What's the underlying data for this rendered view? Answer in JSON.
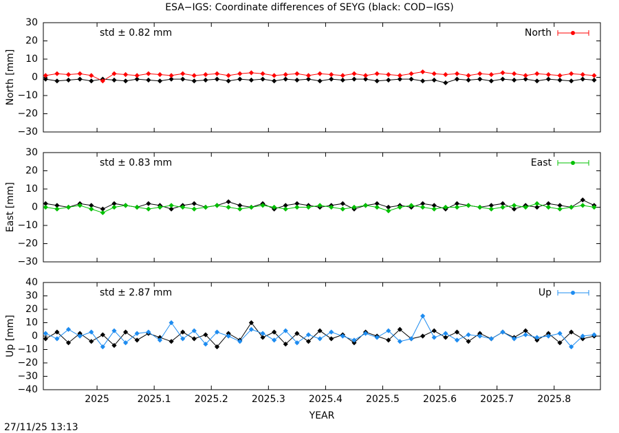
{
  "title": "ESA−IGS: Coordinate differences of SEYG (black: COD−IGS)",
  "footer": "27/11/25 13:13",
  "chart_data": [
    {
      "type": "line",
      "ylabel": "North [mm]",
      "annotation": "std ± 0.82 mm",
      "legend": "top-right",
      "xlim": [
        2024.906,
        2025.881
      ],
      "xticks": [
        2025,
        2025.1,
        2025.2,
        2025.3,
        2025.4,
        2025.5,
        2025.6,
        2025.7,
        2025.8
      ],
      "ylim": [
        -30,
        30
      ],
      "yticks": [
        {
          "value": -30,
          "label": "−30"
        },
        {
          "value": -20,
          "label": "−20"
        },
        {
          "value": -10,
          "label": "−10"
        },
        0,
        10,
        20,
        30
      ],
      "x": [
        2024.91,
        2024.93,
        2024.95,
        2024.97,
        2024.99,
        2025.01,
        2025.03,
        2025.05,
        2025.07,
        2025.09,
        2025.11,
        2025.13,
        2025.15,
        2025.17,
        2025.19,
        2025.21,
        2025.23,
        2025.25,
        2025.27,
        2025.29,
        2025.31,
        2025.33,
        2025.35,
        2025.37,
        2025.39,
        2025.41,
        2025.43,
        2025.45,
        2025.47,
        2025.49,
        2025.51,
        2025.53,
        2025.55,
        2025.57,
        2025.59,
        2025.61,
        2025.63,
        2025.65,
        2025.67,
        2025.69,
        2025.71,
        2025.73,
        2025.75,
        2025.77,
        2025.79,
        2025.81,
        2025.83,
        2025.85,
        2025.87
      ],
      "series": [
        {
          "color": "#000000",
          "values": [
            -1,
            -2,
            -1.5,
            -1,
            -2,
            -1,
            -1.5,
            -2,
            -1,
            -1.5,
            -2,
            -1,
            -1,
            -2,
            -1.5,
            -1,
            -2,
            -1,
            -1.5,
            -1,
            -2,
            -1,
            -1.5,
            -1,
            -2,
            -1,
            -1.5,
            -1,
            -1,
            -2,
            -1.5,
            -1,
            -1,
            -2,
            -1.5,
            -3,
            -1,
            -1.5,
            -1,
            -2,
            -1,
            -1.5,
            -1,
            -2,
            -1,
            -1.5,
            -2,
            -1,
            -1.5
          ]
        },
        {
          "name": "North",
          "color": "#ff0000",
          "values": [
            1,
            2,
            1.5,
            2,
            1,
            -2,
            2,
            1.5,
            1,
            2,
            1.5,
            1,
            2,
            1,
            1.5,
            2,
            1,
            2,
            2.5,
            2,
            1,
            1.5,
            2,
            1,
            2,
            1.5,
            1,
            2,
            1,
            2,
            1.5,
            1,
            2,
            3,
            2,
            1.5,
            2,
            1,
            2,
            1.5,
            2.5,
            2,
            1,
            2,
            1.5,
            1,
            2,
            1.5,
            1
          ]
        }
      ]
    },
    {
      "type": "line",
      "ylabel": "East [mm]",
      "annotation": "std ± 0.83 mm",
      "legend": "top-right",
      "xlim": [
        2024.906,
        2025.881
      ],
      "xticks": [
        2025,
        2025.1,
        2025.2,
        2025.3,
        2025.4,
        2025.5,
        2025.6,
        2025.7,
        2025.8
      ],
      "ylim": [
        -30,
        30
      ],
      "yticks": [
        {
          "value": -30,
          "label": "−30"
        },
        {
          "value": -20,
          "label": "−20"
        },
        {
          "value": -10,
          "label": "−10"
        },
        0,
        10,
        20,
        30
      ],
      "x": [
        2024.91,
        2024.93,
        2024.95,
        2024.97,
        2024.99,
        2025.01,
        2025.03,
        2025.05,
        2025.07,
        2025.09,
        2025.11,
        2025.13,
        2025.15,
        2025.17,
        2025.19,
        2025.21,
        2025.23,
        2025.25,
        2025.27,
        2025.29,
        2025.31,
        2025.33,
        2025.35,
        2025.37,
        2025.39,
        2025.41,
        2025.43,
        2025.45,
        2025.47,
        2025.49,
        2025.51,
        2025.53,
        2025.55,
        2025.57,
        2025.59,
        2025.61,
        2025.63,
        2025.65,
        2025.67,
        2025.69,
        2025.71,
        2025.73,
        2025.75,
        2025.77,
        2025.79,
        2025.81,
        2025.83,
        2025.85,
        2025.87
      ],
      "series": [
        {
          "color": "#000000",
          "values": [
            2,
            1,
            0,
            2,
            1,
            -1,
            2,
            1,
            0,
            2,
            1,
            -1,
            1,
            2,
            0,
            1,
            3,
            1,
            0,
            2,
            -1,
            1,
            2,
            1,
            0,
            1,
            2,
            -1,
            1,
            2,
            0,
            1,
            0,
            2,
            1,
            -1,
            2,
            1,
            0,
            1,
            2,
            -1,
            1,
            0,
            2,
            1,
            0,
            4,
            1
          ]
        },
        {
          "name": "East",
          "color": "#00c000",
          "values": [
            0,
            -1,
            0,
            1,
            -1,
            -3,
            0,
            1,
            0,
            -1,
            0,
            1,
            0,
            -1,
            0,
            1,
            0,
            -1,
            0,
            1,
            0,
            -1,
            0,
            0,
            1,
            0,
            -1,
            0,
            1,
            0,
            -2,
            0,
            1,
            0,
            -1,
            0,
            0,
            1,
            0,
            -1,
            0,
            1,
            0,
            2,
            0,
            -1,
            0,
            1,
            0
          ]
        }
      ]
    },
    {
      "type": "line",
      "ylabel": "Up [mm]",
      "annotation": "std ± 2.87 mm",
      "legend": "top-right",
      "xlabel": "YEAR",
      "xlim": [
        2024.906,
        2025.881
      ],
      "xticks": [
        2025,
        2025.1,
        2025.2,
        2025.3,
        2025.4,
        2025.5,
        2025.6,
        2025.7,
        2025.8
      ],
      "ylim": [
        -40,
        40
      ],
      "yticks": [
        {
          "value": -40,
          "label": "−40"
        },
        {
          "value": -30,
          "label": "−30"
        },
        {
          "value": -20,
          "label": "−20"
        },
        {
          "value": -10,
          "label": "−10"
        },
        0,
        10,
        20,
        30,
        40
      ],
      "x": [
        2024.91,
        2024.93,
        2024.95,
        2024.97,
        2024.99,
        2025.01,
        2025.03,
        2025.05,
        2025.07,
        2025.09,
        2025.11,
        2025.13,
        2025.15,
        2025.17,
        2025.19,
        2025.21,
        2025.23,
        2025.25,
        2025.27,
        2025.29,
        2025.31,
        2025.33,
        2025.35,
        2025.37,
        2025.39,
        2025.41,
        2025.43,
        2025.45,
        2025.47,
        2025.49,
        2025.51,
        2025.53,
        2025.55,
        2025.57,
        2025.59,
        2025.61,
        2025.63,
        2025.65,
        2025.67,
        2025.69,
        2025.71,
        2025.73,
        2025.75,
        2025.77,
        2025.79,
        2025.81,
        2025.83,
        2025.85,
        2025.87
      ],
      "series": [
        {
          "color": "#000000",
          "values": [
            -2,
            3,
            -5,
            2,
            -4,
            1,
            -7,
            3,
            -3,
            2,
            -1,
            -4,
            3,
            -2,
            1,
            -8,
            2,
            -3,
            10,
            -1,
            3,
            -6,
            2,
            -4,
            4,
            -2,
            1,
            -5,
            3,
            0,
            -3,
            5,
            -2,
            0,
            4,
            -1,
            3,
            -4,
            2,
            -2,
            3,
            -1,
            4,
            -3,
            2,
            -5,
            3,
            -2,
            0
          ]
        },
        {
          "name": "Up",
          "color": "#1e8cf0",
          "values": [
            2,
            -2,
            5,
            0,
            3,
            -8,
            4,
            -5,
            2,
            3,
            -3,
            10,
            -2,
            4,
            -6,
            3,
            0,
            -4,
            5,
            2,
            -3,
            4,
            -5,
            1,
            -2,
            3,
            0,
            -3,
            2,
            -1,
            4,
            -4,
            -2,
            15,
            -1,
            2,
            -3,
            1,
            0,
            -2,
            3,
            -2,
            1,
            -1,
            0,
            2,
            -8,
            0,
            1
          ]
        }
      ]
    }
  ]
}
